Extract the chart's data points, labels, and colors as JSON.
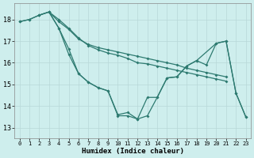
{
  "xlabel": "Humidex (Indice chaleur)",
  "background_color": "#ceeeed",
  "grid_color": "#b8d8d8",
  "line_color": "#2d7a70",
  "xlim": [
    -0.5,
    23.5
  ],
  "ylim": [
    12.5,
    18.75
  ],
  "xticks": [
    0,
    1,
    2,
    3,
    4,
    5,
    6,
    7,
    8,
    9,
    10,
    11,
    12,
    13,
    14,
    15,
    16,
    17,
    18,
    19,
    20,
    21,
    22,
    23
  ],
  "yticks": [
    13,
    14,
    15,
    16,
    17,
    18
  ],
  "line1_x": [
    0,
    1,
    2,
    3,
    4,
    5,
    6,
    7,
    8,
    9,
    10,
    11,
    12,
    13,
    14,
    15,
    16,
    17,
    18,
    19,
    20,
    21
  ],
  "line1_y": [
    17.9,
    18.0,
    18.2,
    18.35,
    17.9,
    17.55,
    17.1,
    16.85,
    16.7,
    16.6,
    16.5,
    16.4,
    16.3,
    16.2,
    16.1,
    16.0,
    15.9,
    15.75,
    15.65,
    15.55,
    15.45,
    15.35
  ],
  "line2_x": [
    0,
    1,
    2,
    3,
    4,
    5,
    6,
    7,
    8,
    9,
    10,
    11,
    12,
    13,
    14,
    15,
    16,
    17,
    18,
    19,
    20,
    21
  ],
  "line2_y": [
    17.9,
    18.0,
    18.2,
    18.35,
    18.0,
    17.6,
    17.15,
    16.8,
    16.6,
    16.45,
    16.35,
    16.2,
    16.0,
    15.95,
    15.85,
    15.75,
    15.65,
    15.55,
    15.45,
    15.35,
    15.25,
    15.15
  ],
  "line3_x": [
    2,
    3,
    4,
    5,
    6,
    7,
    8,
    9,
    10,
    11,
    12,
    13,
    14,
    15,
    16,
    17,
    18,
    19,
    20,
    21,
    22,
    23
  ],
  "line3_y": [
    18.2,
    18.35,
    17.6,
    16.4,
    15.5,
    15.1,
    14.85,
    14.7,
    13.55,
    13.55,
    13.4,
    13.55,
    14.4,
    15.3,
    15.35,
    15.85,
    16.1,
    15.9,
    16.9,
    17.0,
    14.6,
    13.5
  ],
  "line4_x": [
    3,
    4,
    5,
    6,
    7,
    8,
    9,
    10,
    11,
    12,
    13,
    14,
    15,
    16,
    17,
    18,
    20,
    21,
    22,
    23
  ],
  "line4_y": [
    18.35,
    17.6,
    16.65,
    15.5,
    15.1,
    14.85,
    14.7,
    13.6,
    13.7,
    13.4,
    14.4,
    14.4,
    15.3,
    15.35,
    15.85,
    16.1,
    16.9,
    17.0,
    14.6,
    13.5
  ]
}
